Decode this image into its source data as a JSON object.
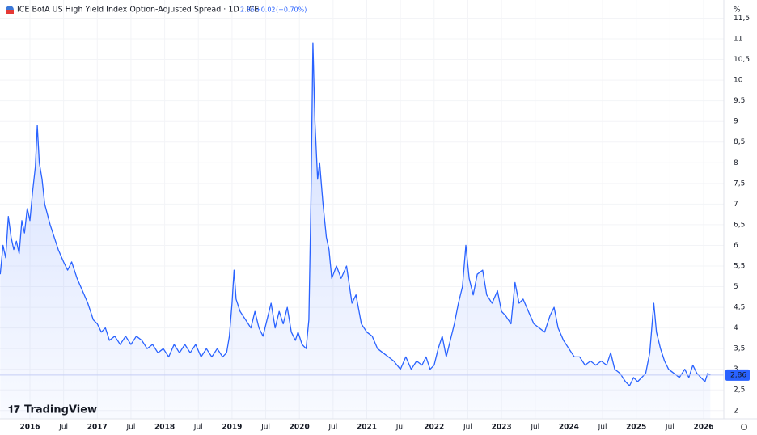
{
  "chart_data": {
    "type": "area",
    "title": "ICE BofA US High Yield Index Option-Adjusted Spread · 1D · ICE",
    "header": {
      "price": "2.86",
      "change": "+0.02",
      "change_pct": "(+0.70%)"
    },
    "unit": "%",
    "brand": "TradingView",
    "color": "#2962ff",
    "grid": true,
    "last_label": {
      "value": 2.86,
      "label": "2,86"
    },
    "xlim": [
      2015.556,
      2026.3
    ],
    "ylim": [
      1.8,
      11.94
    ],
    "xticks": [
      2016,
      {
        "value": 2016.5,
        "label": "Jul"
      },
      2017,
      {
        "value": 2017.5,
        "label": "Jul"
      },
      2018,
      {
        "value": 2018.5,
        "label": "Jul"
      },
      2019,
      {
        "value": 2019.5,
        "label": "Jul"
      },
      2020,
      {
        "value": 2020.5,
        "label": "Jul"
      },
      2021,
      {
        "value": 2021.5,
        "label": "Jul"
      },
      2022,
      {
        "value": 2022.5,
        "label": "Jul"
      },
      2023,
      {
        "value": 2023.5,
        "label": "Jul"
      },
      2024,
      {
        "value": 2024.5,
        "label": "Jul"
      },
      2025,
      {
        "value": 2025.5,
        "label": "Jul"
      },
      2026
    ],
    "yticks": [
      2,
      {
        "value": 2.5,
        "label": "2,5"
      },
      3,
      {
        "value": 3.5,
        "label": "3,5"
      },
      4,
      {
        "value": 4.5,
        "label": "4,5"
      },
      5,
      {
        "value": 5.5,
        "label": "5,5"
      },
      6,
      {
        "value": 6.5,
        "label": "6,5"
      },
      7,
      {
        "value": 7.5,
        "label": "7,5"
      },
      8,
      {
        "value": 8.5,
        "label": "8,5"
      },
      9,
      {
        "value": 9.5,
        "label": "9,5"
      },
      10,
      {
        "value": 10.5,
        "label": "10,5"
      },
      11,
      {
        "value": 11.5,
        "label": "11,5"
      }
    ],
    "x": [
      2015.56,
      2015.6,
      2015.64,
      2015.68,
      2015.72,
      2015.76,
      2015.8,
      2015.84,
      2015.88,
      2015.92,
      2015.96,
      2016.0,
      2016.04,
      2016.08,
      2016.11,
      2016.14,
      2016.18,
      2016.22,
      2016.3,
      2016.36,
      2016.42,
      2016.5,
      2016.56,
      2016.62,
      2016.7,
      2016.78,
      2016.86,
      2016.94,
      2017.0,
      2017.06,
      2017.12,
      2017.18,
      2017.26,
      2017.34,
      2017.42,
      2017.5,
      2017.58,
      2017.66,
      2017.74,
      2017.82,
      2017.9,
      2017.98,
      2018.06,
      2018.14,
      2018.22,
      2018.3,
      2018.38,
      2018.46,
      2018.54,
      2018.62,
      2018.7,
      2018.78,
      2018.86,
      2018.92,
      2018.96,
      2019.0,
      2019.03,
      2019.06,
      2019.12,
      2019.2,
      2019.28,
      2019.34,
      2019.4,
      2019.46,
      2019.52,
      2019.58,
      2019.64,
      2019.7,
      2019.76,
      2019.82,
      2019.88,
      2019.94,
      2019.98,
      2020.04,
      2020.1,
      2020.14,
      2020.17,
      2020.2,
      2020.23,
      2020.27,
      2020.3,
      2020.35,
      2020.4,
      2020.44,
      2020.48,
      2020.55,
      2020.62,
      2020.7,
      2020.78,
      2020.84,
      2020.92,
      2021.0,
      2021.08,
      2021.16,
      2021.24,
      2021.32,
      2021.4,
      2021.5,
      2021.58,
      2021.66,
      2021.74,
      2021.82,
      2021.88,
      2021.94,
      2022.0,
      2022.06,
      2022.12,
      2022.18,
      2022.24,
      2022.3,
      2022.36,
      2022.42,
      2022.47,
      2022.52,
      2022.58,
      2022.64,
      2022.72,
      2022.78,
      2022.86,
      2022.94,
      2023.0,
      2023.06,
      2023.14,
      2023.2,
      2023.26,
      2023.32,
      2023.4,
      2023.48,
      2023.56,
      2023.64,
      2023.72,
      2023.78,
      2023.84,
      2023.92,
      2024.0,
      2024.08,
      2024.16,
      2024.24,
      2024.32,
      2024.4,
      2024.48,
      2024.56,
      2024.62,
      2024.68,
      2024.76,
      2024.84,
      2024.9,
      2024.96,
      2025.02,
      2025.08,
      2025.14,
      2025.2,
      2025.26,
      2025.3,
      2025.36,
      2025.42,
      2025.48,
      2025.56,
      2025.64,
      2025.72,
      2025.78,
      2025.84,
      2025.9,
      2025.96,
      2026.02,
      2026.06,
      2026.1
    ],
    "values": [
      5.3,
      6.0,
      5.7,
      6.7,
      6.2,
      5.9,
      6.1,
      5.8,
      6.6,
      6.3,
      6.9,
      6.6,
      7.3,
      7.9,
      8.9,
      8.0,
      7.6,
      7.0,
      6.5,
      6.2,
      5.9,
      5.6,
      5.4,
      5.6,
      5.2,
      4.9,
      4.6,
      4.2,
      4.1,
      3.9,
      4.0,
      3.7,
      3.8,
      3.6,
      3.8,
      3.6,
      3.8,
      3.7,
      3.5,
      3.6,
      3.4,
      3.5,
      3.3,
      3.6,
      3.4,
      3.6,
      3.4,
      3.6,
      3.3,
      3.5,
      3.3,
      3.5,
      3.3,
      3.4,
      3.8,
      4.6,
      5.4,
      4.7,
      4.4,
      4.2,
      4.0,
      4.4,
      4.0,
      3.8,
      4.2,
      4.6,
      4.0,
      4.4,
      4.1,
      4.5,
      3.9,
      3.7,
      3.9,
      3.6,
      3.5,
      4.2,
      7.0,
      10.9,
      9.0,
      7.6,
      8.0,
      7.0,
      6.2,
      5.9,
      5.2,
      5.5,
      5.2,
      5.5,
      4.6,
      4.8,
      4.1,
      3.9,
      3.8,
      3.5,
      3.4,
      3.3,
      3.2,
      3.0,
      3.3,
      3.0,
      3.2,
      3.1,
      3.3,
      3.0,
      3.1,
      3.5,
      3.8,
      3.3,
      3.7,
      4.1,
      4.6,
      5.0,
      6.0,
      5.2,
      4.8,
      5.3,
      5.4,
      4.8,
      4.6,
      4.9,
      4.4,
      4.3,
      4.1,
      5.1,
      4.6,
      4.7,
      4.4,
      4.1,
      4.0,
      3.9,
      4.3,
      4.5,
      4.0,
      3.7,
      3.5,
      3.3,
      3.3,
      3.1,
      3.2,
      3.1,
      3.2,
      3.1,
      3.4,
      3.0,
      2.9,
      2.7,
      2.6,
      2.8,
      2.7,
      2.8,
      2.9,
      3.4,
      4.6,
      3.9,
      3.5,
      3.2,
      3.0,
      2.9,
      2.8,
      3.0,
      2.8,
      3.1,
      2.9,
      2.8,
      2.7,
      2.9,
      2.86
    ]
  }
}
